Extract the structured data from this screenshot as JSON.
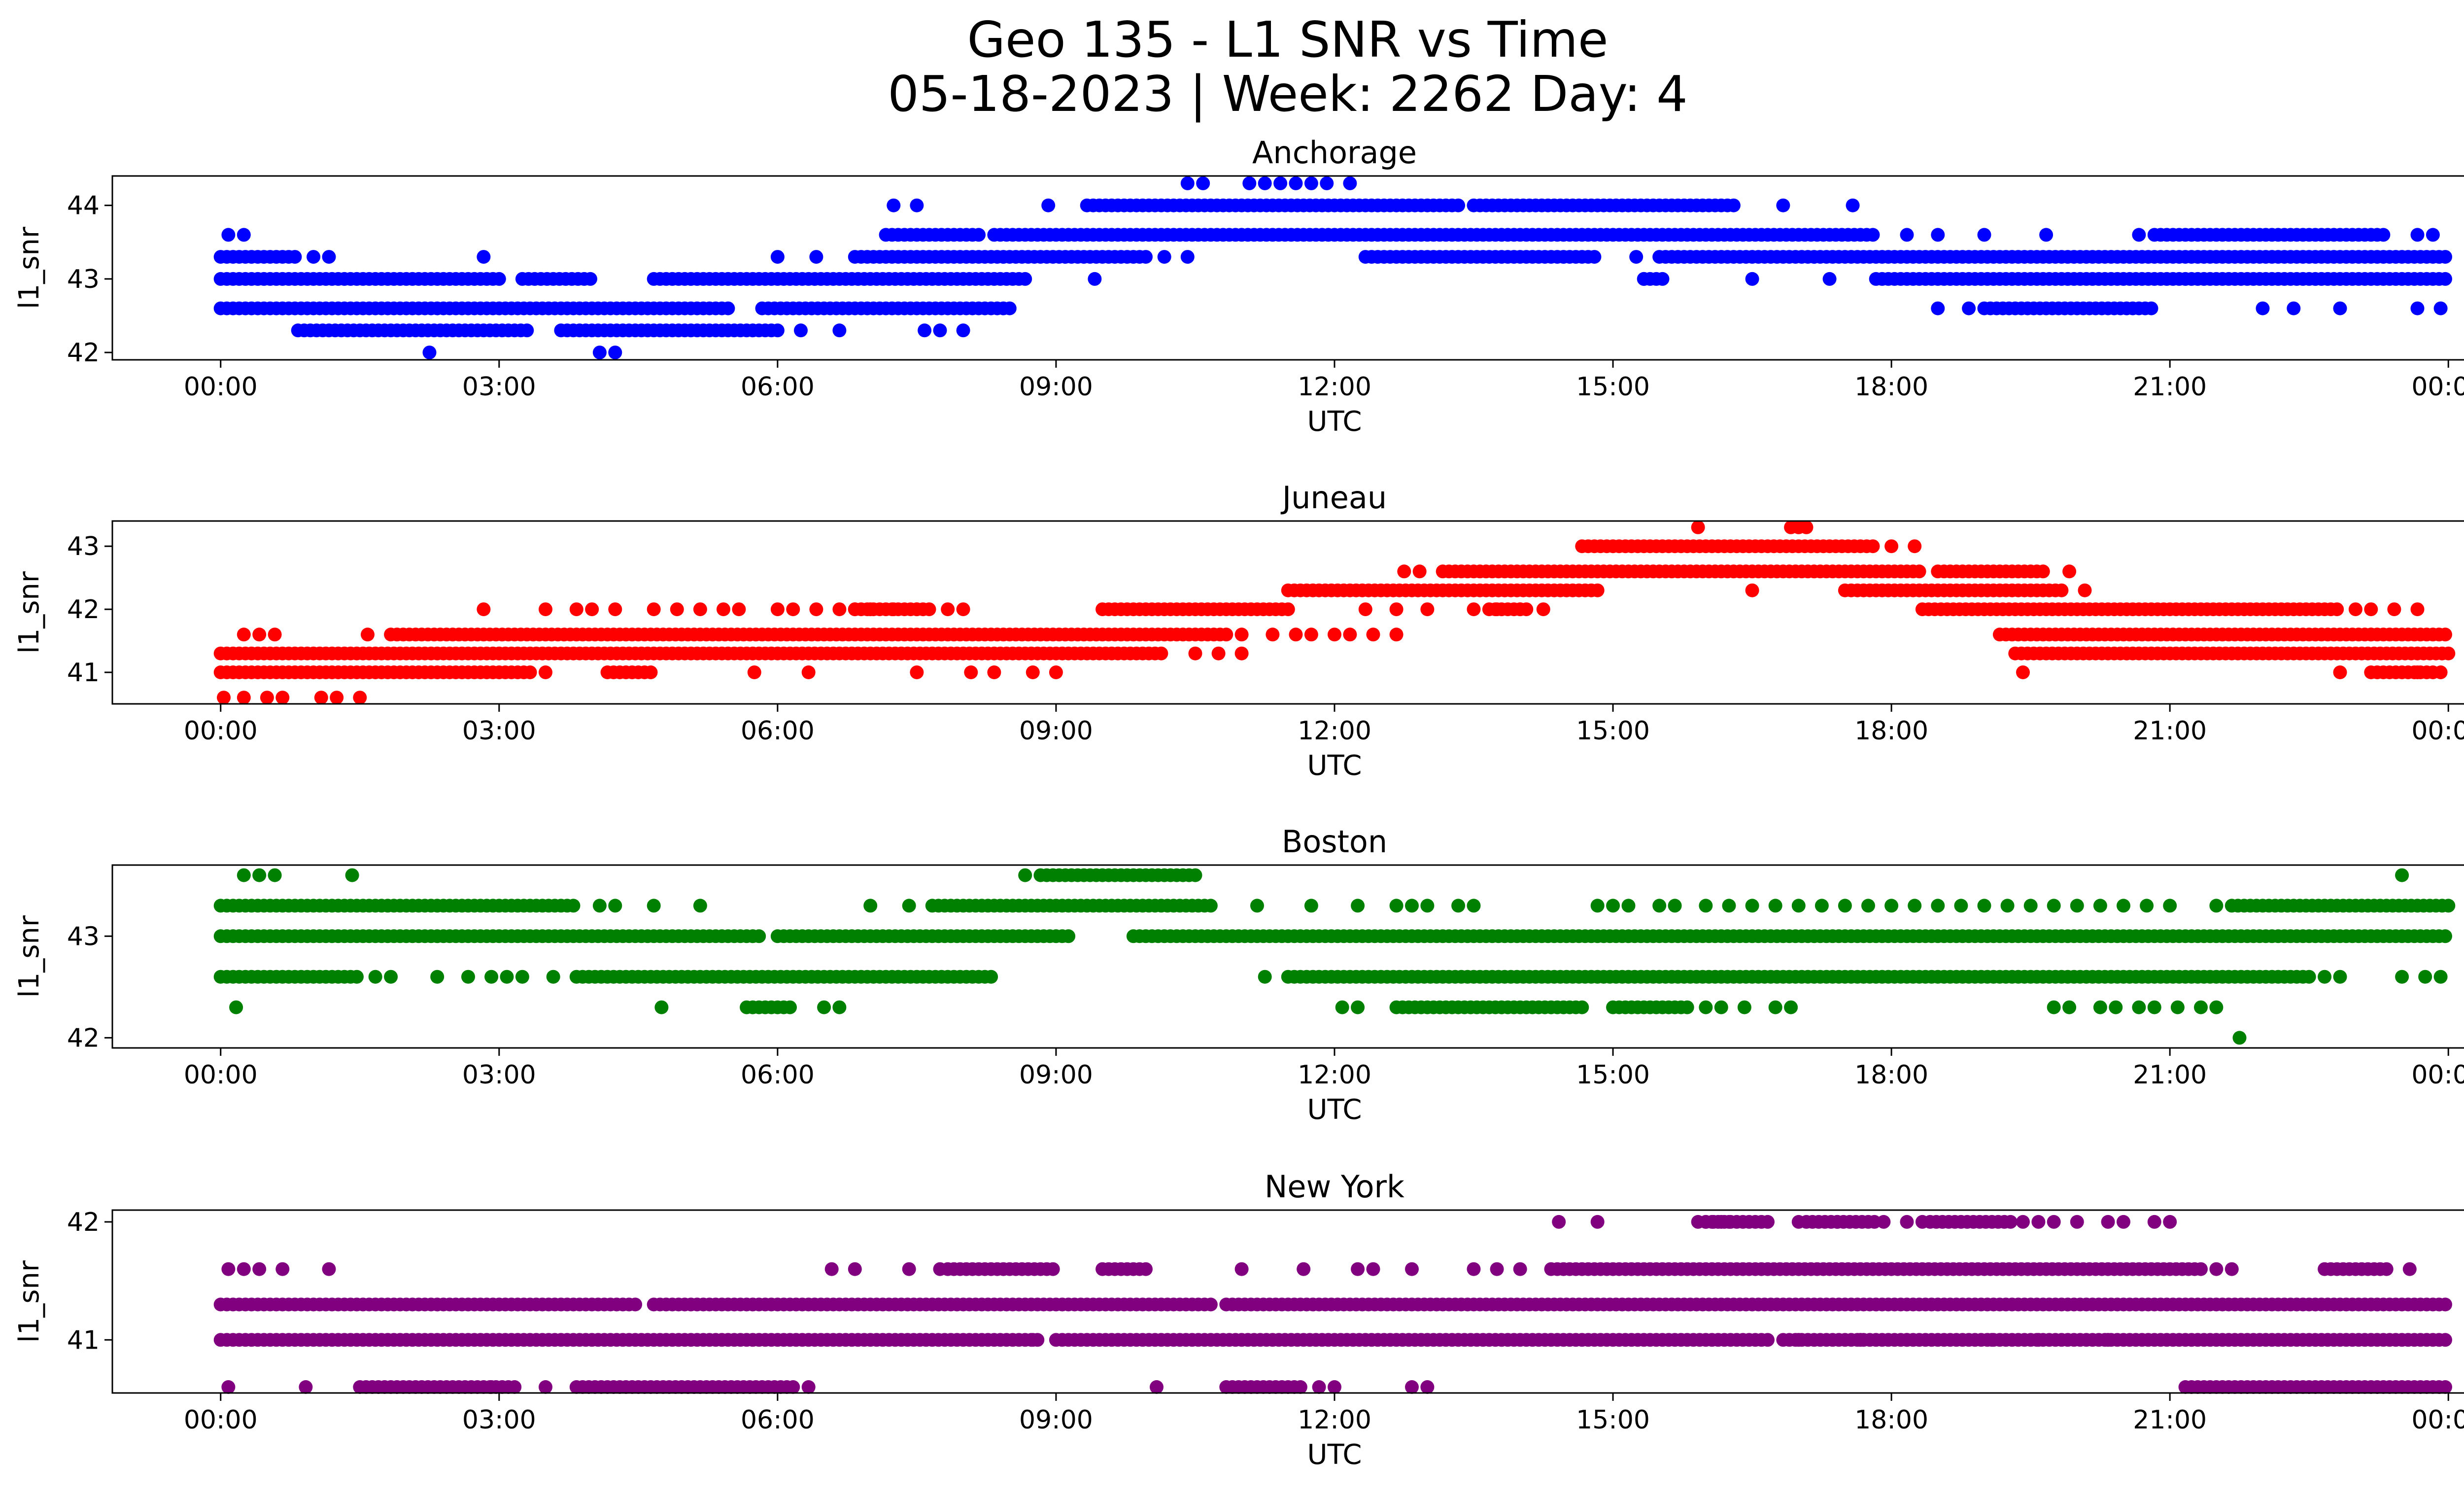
{
  "figure": {
    "title_line1": "Geo 135 - L1 SNR vs Time",
    "title_line2": "05-18-2023 | Week: 2262 Day: 4"
  },
  "chart_data": [
    {
      "type": "scatter",
      "title": "Anchorage",
      "xlabel": "UTC",
      "ylabel": "l1_snr",
      "color": "#0000ff",
      "xlim": [
        "2023-05-17T22:50",
        "2023-05-19T01:10"
      ],
      "ylim": [
        41.9,
        44.4
      ],
      "xticks": [
        "00:00",
        "03:00",
        "06:00",
        "09:00",
        "12:00",
        "15:00",
        "18:00",
        "21:00",
        "00:00"
      ],
      "yticks": [
        42,
        43,
        44
      ],
      "levels": [
        {
          "y": 42.0,
          "ranges": [],
          "points": [
            "02:15",
            "04:05",
            "04:15"
          ]
        },
        {
          "y": 42.3,
          "ranges": [
            [
              "00:50",
              "03:20"
            ],
            [
              "03:40",
              "06:00"
            ]
          ],
          "points": [
            "06:15",
            "06:40",
            "07:35",
            "07:45",
            "08:00"
          ]
        },
        {
          "y": 42.6,
          "ranges": [
            [
              "00:00",
              "05:30"
            ],
            [
              "05:50",
              "08:30"
            ]
          ],
          "points": [
            "18:30",
            "18:50",
            "22:00",
            "22:20",
            "22:50",
            "23:40",
            "23:55"
          ]
        },
        {
          "y": 42.6,
          "ranges": [
            [
              "19:00",
              "20:50"
            ]
          ],
          "points": []
        },
        {
          "y": 43.0,
          "ranges": [
            [
              "00:00",
              "03:00"
            ],
            [
              "03:15",
              "04:00"
            ],
            [
              "04:40",
              "08:40"
            ],
            [
              "17:50",
              "24:00"
            ]
          ],
          "points": [
            "09:25",
            "15:20",
            "16:30",
            "17:20"
          ]
        },
        {
          "y": 43.0,
          "ranges": [
            [
              "15:20",
              "15:35"
            ]
          ],
          "points": []
        },
        {
          "y": 43.3,
          "ranges": [
            [
              "00:00",
              "00:50"
            ],
            [
              "06:50",
              "10:00"
            ],
            [
              "12:20",
              "14:50"
            ],
            [
              "15:30",
              "24:00"
            ]
          ],
          "points": [
            "01:00",
            "01:10",
            "02:50",
            "06:00",
            "06:25",
            "10:10",
            "10:25",
            "15:15"
          ]
        },
        {
          "y": 43.6,
          "ranges": [
            [
              "07:10",
              "08:10"
            ],
            [
              "08:20",
              "17:50"
            ],
            [
              "20:50",
              "23:20"
            ]
          ],
          "points": [
            "00:05",
            "00:15",
            "18:10",
            "18:30",
            "19:00",
            "19:40",
            "20:40",
            "23:40",
            "23:50"
          ]
        },
        {
          "y": 44.0,
          "ranges": [
            [
              "09:20",
              "13:20"
            ],
            [
              "13:30",
              "16:20"
            ]
          ],
          "points": [
            "07:15",
            "07:30",
            "08:55",
            "16:50",
            "17:35"
          ]
        },
        {
          "y": 44.3,
          "ranges": [],
          "points": [
            "10:25",
            "10:35",
            "11:05",
            "11:15",
            "11:25",
            "11:35",
            "11:45",
            "11:55",
            "12:10"
          ]
        }
      ]
    },
    {
      "type": "scatter",
      "title": "Juneau",
      "xlabel": "UTC",
      "ylabel": "l1_snr",
      "color": "#ff0000",
      "xlim": [
        "2023-05-17T22:50",
        "2023-05-19T01:10"
      ],
      "ylim": [
        40.5,
        43.4
      ],
      "xticks": [
        "00:00",
        "03:00",
        "06:00",
        "09:00",
        "12:00",
        "15:00",
        "18:00",
        "21:00",
        "00:00"
      ],
      "yticks": [
        41,
        42,
        43
      ],
      "levels": [
        {
          "y": 40.6,
          "ranges": [],
          "points": [
            "00:02",
            "00:15",
            "00:30",
            "00:40",
            "01:05",
            "01:15",
            "01:30"
          ]
        },
        {
          "y": 41.0,
          "ranges": [
            [
              "00:00",
              "03:20"
            ],
            [
              "04:10",
              "04:40"
            ]
          ],
          "points": [
            "03:30",
            "05:45",
            "06:20",
            "07:30",
            "08:05",
            "08:20",
            "08:45",
            "09:00",
            "23:40",
            "23:55"
          ]
        },
        {
          "y": 41.0,
          "ranges": [
            [
              "23:10",
              "23:50"
            ]
          ],
          "points": [
            "19:25",
            "22:50"
          ]
        },
        {
          "y": 41.3,
          "ranges": [
            [
              "00:00",
              "10:10"
            ],
            [
              "19:20",
              "24:00"
            ]
          ],
          "points": [
            "10:30",
            "10:45",
            "11:00"
          ]
        },
        {
          "y": 41.6,
          "ranges": [
            [
              "01:50",
              "10:50"
            ],
            [
              "19:10",
              "24:00"
            ]
          ],
          "points": [
            "00:15",
            "00:25",
            "00:35",
            "01:35",
            "11:00",
            "11:20",
            "11:35",
            "11:45",
            "12:00",
            "12:10",
            "12:25",
            "12:40",
            "23:10"
          ]
        },
        {
          "y": 42.0,
          "ranges": [
            [
              "09:30",
              "11:30"
            ],
            [
              "18:20",
              "22:50"
            ]
          ],
          "points": [
            "02:50",
            "03:30",
            "03:50",
            "04:00",
            "04:15",
            "04:40",
            "04:55",
            "05:10",
            "05:25",
            "05:35",
            "06:00",
            "06:10",
            "06:25",
            "06:40",
            "06:50",
            "07:00",
            "07:15",
            "07:30",
            "07:50",
            "08:00",
            "12:20",
            "12:40",
            "13:00",
            "13:30",
            "13:45",
            "14:00",
            "14:15",
            "23:00",
            "23:10",
            "23:25",
            "23:40"
          ]
        },
        {
          "y": 42.0,
          "ranges": [
            [
              "06:50",
              "07:40"
            ],
            [
              "13:40",
              "14:05"
            ]
          ],
          "points": []
        },
        {
          "y": 42.3,
          "ranges": [
            [
              "11:30",
              "14:50"
            ],
            [
              "17:30",
              "19:50"
            ]
          ],
          "points": [
            "16:30",
            "20:05"
          ]
        },
        {
          "y": 42.6,
          "ranges": [
            [
              "13:10",
              "18:20"
            ],
            [
              "18:30",
              "19:40"
            ]
          ],
          "points": [
            "12:45",
            "12:55",
            "19:55"
          ]
        },
        {
          "y": 43.0,
          "ranges": [
            [
              "14:40",
              "17:50"
            ]
          ],
          "points": [
            "18:00",
            "18:15"
          ]
        },
        {
          "y": 43.3,
          "ranges": [],
          "points": [
            "15:55",
            "16:55",
            "17:00",
            "17:05"
          ]
        }
      ]
    },
    {
      "type": "scatter",
      "title": "Boston",
      "xlabel": "UTC",
      "ylabel": "l1_snr",
      "color": "#008000",
      "xlim": [
        "2023-05-17T22:50",
        "2023-05-19T01:10"
      ],
      "ylim": [
        41.9,
        43.7
      ],
      "xticks": [
        "00:00",
        "03:00",
        "06:00",
        "09:00",
        "12:00",
        "15:00",
        "18:00",
        "21:00",
        "00:00"
      ],
      "yticks": [
        42,
        43
      ],
      "levels": [
        {
          "y": 42.0,
          "ranges": [],
          "points": [
            "21:45"
          ]
        },
        {
          "y": 42.3,
          "ranges": [
            [
              "05:40",
              "06:10"
            ],
            [
              "12:40",
              "14:40"
            ],
            [
              "15:00",
              "15:50"
            ]
          ],
          "points": [
            "00:10",
            "04:45",
            "06:30",
            "06:40",
            "12:05",
            "12:15",
            "16:00",
            "16:10",
            "16:25",
            "16:45",
            "16:55",
            "19:45",
            "19:55",
            "20:15",
            "20:25",
            "20:40",
            "20:50",
            "21:05",
            "21:20",
            "21:30"
          ]
        },
        {
          "y": 42.6,
          "ranges": [
            [
              "00:00",
              "01:30"
            ],
            [
              "03:50",
              "08:20"
            ],
            [
              "11:30",
              "22:30"
            ]
          ],
          "points": [
            "01:40",
            "01:50",
            "02:20",
            "02:40",
            "02:55",
            "03:05",
            "03:15",
            "03:35",
            "11:15",
            "22:40",
            "22:50",
            "23:30",
            "23:45",
            "23:55"
          ]
        },
        {
          "y": 43.0,
          "ranges": [
            [
              "00:00",
              "05:50"
            ],
            [
              "06:00",
              "09:10"
            ],
            [
              "09:50",
              "24:00"
            ]
          ],
          "points": []
        },
        {
          "y": 43.3,
          "ranges": [
            [
              "00:00",
              "03:50"
            ],
            [
              "07:40",
              "10:40"
            ],
            [
              "21:40",
              "24:00"
            ]
          ],
          "points": [
            "04:05",
            "04:15",
            "04:40",
            "05:10",
            "07:00",
            "07:25",
            "11:10",
            "11:45",
            "12:15",
            "12:40",
            "12:50",
            "13:00",
            "13:20",
            "13:30",
            "14:50",
            "15:00",
            "15:10",
            "15:30",
            "15:40",
            "16:00",
            "16:15",
            "16:30",
            "16:45",
            "17:00",
            "17:15",
            "17:30",
            "17:45",
            "18:00",
            "18:15",
            "18:30",
            "18:45",
            "19:00",
            "19:15",
            "19:30",
            "19:45",
            "20:00",
            "20:15",
            "20:30",
            "20:45",
            "21:00",
            "21:30"
          ]
        },
        {
          "y": 43.6,
          "ranges": [
            [
              "08:50",
              "10:30"
            ]
          ],
          "points": [
            "00:15",
            "00:25",
            "00:35",
            "01:25",
            "08:40",
            "23:30"
          ]
        }
      ]
    },
    {
      "type": "scatter",
      "title": "New York",
      "xlabel": "UTC",
      "ylabel": "l1_snr",
      "color": "#800080",
      "xlim": [
        "2023-05-17T22:50",
        "2023-05-19T01:10"
      ],
      "ylim": [
        40.55,
        42.1
      ],
      "xticks": [
        "00:00",
        "03:00",
        "06:00",
        "09:00",
        "12:00",
        "15:00",
        "18:00",
        "21:00",
        "00:00"
      ],
      "yticks": [
        41,
        42
      ],
      "levels": [
        {
          "y": 40.6,
          "ranges": [
            [
              "01:30",
              "03:10"
            ],
            [
              "03:50",
              "06:10"
            ],
            [
              "10:50",
              "11:40"
            ],
            [
              "21:10",
              "24:00"
            ]
          ],
          "points": [
            "00:05",
            "00:55",
            "02:55",
            "03:30",
            "06:20",
            "10:05",
            "11:50",
            "12:00",
            "12:50",
            "13:00"
          ]
        },
        {
          "y": 41.0,
          "ranges": [
            [
              "00:00",
              "08:50"
            ],
            [
              "09:00",
              "16:40"
            ],
            [
              "16:50",
              "24:00"
            ]
          ],
          "points": [
            "08:45",
            "17:00",
            "17:40",
            "18:10",
            "19:05",
            "19:35",
            "20:20"
          ]
        },
        {
          "y": 41.3,
          "ranges": [
            [
              "00:00",
              "04:30"
            ],
            [
              "04:40",
              "10:40"
            ],
            [
              "10:50",
              "24:00"
            ]
          ],
          "points": []
        },
        {
          "y": 41.6,
          "ranges": [
            [
              "07:50",
              "09:00"
            ],
            [
              "09:30",
              "10:00"
            ],
            [
              "14:20",
              "21:20"
            ],
            [
              "22:40",
              "23:20"
            ]
          ],
          "points": [
            "00:05",
            "00:15",
            "00:25",
            "00:40",
            "01:10",
            "06:35",
            "06:50",
            "07:25",
            "07:45",
            "11:00",
            "11:40",
            "12:15",
            "12:25",
            "12:50",
            "13:30",
            "13:45",
            "14:00",
            "21:30",
            "21:40",
            "23:35"
          ]
        },
        {
          "y": 42.0,
          "ranges": [
            [
              "16:00",
              "16:40"
            ],
            [
              "17:05",
              "17:50"
            ],
            [
              "18:25",
              "19:20"
            ]
          ],
          "points": [
            "14:25",
            "14:50",
            "15:55",
            "16:00",
            "16:05",
            "16:10",
            "16:15",
            "17:00",
            "17:25",
            "17:55",
            "18:10",
            "18:20",
            "19:25",
            "19:35",
            "19:45",
            "20:00",
            "20:20",
            "20:30",
            "20:50",
            "21:00"
          ]
        }
      ]
    }
  ]
}
